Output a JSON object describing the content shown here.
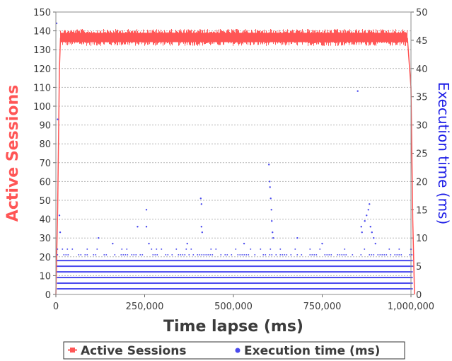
{
  "chart_data": {
    "type": "scatter",
    "title": "",
    "xlabel": "Time lapse (ms)",
    "ylabel_left": "Active Sessions",
    "ylabel_right": "Execution time (ms)",
    "xlim": [
      0,
      1000000
    ],
    "ylim_left": [
      0,
      150
    ],
    "ylim_right": [
      0,
      50
    ],
    "x_ticks": [
      0,
      250000,
      500000,
      750000,
      1000000
    ],
    "x_tick_labels": [
      "0",
      "250,000",
      "500,000",
      "750,000",
      "1,000,000"
    ],
    "y_left_ticks": [
      0,
      10,
      20,
      30,
      40,
      50,
      60,
      70,
      80,
      90,
      100,
      110,
      120,
      130,
      140,
      150
    ],
    "y_right_ticks": [
      0,
      5,
      10,
      15,
      20,
      25,
      30,
      35,
      40,
      45,
      50
    ],
    "grid": true,
    "legend_position": "bottom",
    "series": [
      {
        "name": "Active Sessions",
        "axis": "left",
        "color": "#ff5555",
        "marker": "square",
        "profile": [
          {
            "x": 0,
            "y": 0
          },
          {
            "x": 5000,
            "y": 45
          },
          {
            "x": 10000,
            "y": 120
          },
          {
            "x": 13000,
            "y": 136
          },
          {
            "x": 990000,
            "y": 136
          },
          {
            "x": 1000000,
            "y": 110
          },
          {
            "x": 1005000,
            "y": 40
          },
          {
            "x": 1010000,
            "y": 0
          }
        ],
        "plateau_min": 132,
        "plateau_max": 141
      },
      {
        "name": "Execution time (ms)",
        "axis": "right",
        "color": "#4a4aee",
        "marker": "circle",
        "bands": [
          1,
          2,
          3,
          4,
          5,
          6
        ],
        "sparse_levels": [
          7,
          8
        ],
        "outliers": [
          {
            "x": 2000,
            "y": 48
          },
          {
            "x": 5000,
            "y": 31
          },
          {
            "x": 10000,
            "y": 14
          },
          {
            "x": 12000,
            "y": 11
          },
          {
            "x": 120000,
            "y": 10
          },
          {
            "x": 160000,
            "y": 9
          },
          {
            "x": 230000,
            "y": 12
          },
          {
            "x": 255000,
            "y": 15
          },
          {
            "x": 255000,
            "y": 12
          },
          {
            "x": 262000,
            "y": 9
          },
          {
            "x": 370000,
            "y": 9
          },
          {
            "x": 408000,
            "y": 17
          },
          {
            "x": 410000,
            "y": 16
          },
          {
            "x": 410000,
            "y": 12
          },
          {
            "x": 412000,
            "y": 11
          },
          {
            "x": 530000,
            "y": 9
          },
          {
            "x": 600000,
            "y": 23
          },
          {
            "x": 602000,
            "y": 20
          },
          {
            "x": 603000,
            "y": 19
          },
          {
            "x": 605000,
            "y": 17
          },
          {
            "x": 607000,
            "y": 15
          },
          {
            "x": 608000,
            "y": 13
          },
          {
            "x": 610000,
            "y": 11
          },
          {
            "x": 612000,
            "y": 10
          },
          {
            "x": 680000,
            "y": 10
          },
          {
            "x": 750000,
            "y": 9
          },
          {
            "x": 850000,
            "y": 36
          },
          {
            "x": 860000,
            "y": 12
          },
          {
            "x": 862000,
            "y": 11
          },
          {
            "x": 870000,
            "y": 13
          },
          {
            "x": 875000,
            "y": 14
          },
          {
            "x": 880000,
            "y": 15
          },
          {
            "x": 883000,
            "y": 16
          },
          {
            "x": 886000,
            "y": 12
          },
          {
            "x": 890000,
            "y": 11
          },
          {
            "x": 895000,
            "y": 10
          },
          {
            "x": 900000,
            "y": 9
          },
          {
            "x": 1000000,
            "y": 8
          }
        ]
      }
    ]
  }
}
